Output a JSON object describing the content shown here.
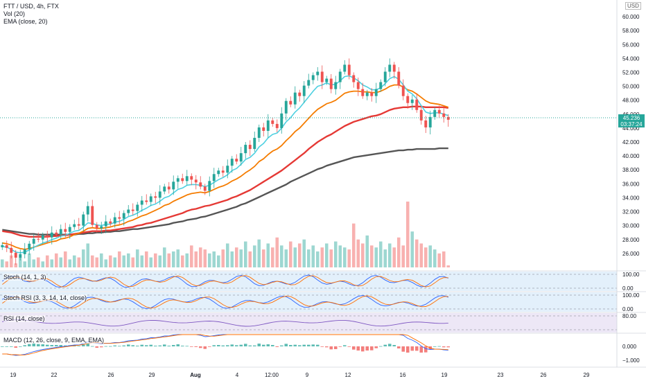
{
  "header": {
    "symbol_line": "FTT / USD, 4h, FTX",
    "volume_label": "Vol (20)",
    "ema_label": "EMA (close, 20)",
    "unit": "USD"
  },
  "price_tag": {
    "price": "45.236",
    "countdown": "03:37:24",
    "color": "#26a69a"
  },
  "panes": {
    "stoch": {
      "label": "Stoch (14, 1, 3)",
      "ticks": [
        "100.00",
        "0.00"
      ]
    },
    "stoch_rsi": {
      "label": "Stoch RSI (3, 3, 14, 14, close)",
      "ticks": [
        "100.00",
        "0.00"
      ]
    },
    "rsi": {
      "label": "RSI (14, close)",
      "ticks": [
        "80.00"
      ]
    },
    "macd": {
      "label": "MACD (12, 26, close, 9, EMA, EMA)",
      "ticks": [
        "0.000",
        "−1.000"
      ]
    }
  },
  "colors": {
    "up": "#26a69a",
    "down": "#ef5350",
    "ema_fast": "#4dd0e1",
    "ema_mid": "#f57c00",
    "ema_slow": "#e53935",
    "ema_long": "#555555",
    "stoch_k": "#2962ff",
    "stoch_d": "#ff6d00",
    "rsi": "#7e57c2"
  },
  "chart_data": {
    "type": "candlestick",
    "y_ticks": [
      "60.000",
      "58.000",
      "56.000",
      "54.000",
      "52.000",
      "50.000",
      "48.000",
      "46.000",
      "44.000",
      "42.000",
      "40.000",
      "38.000",
      "36.000",
      "34.000",
      "32.000",
      "30.000",
      "28.000",
      "26.000"
    ],
    "x_ticks": [
      "19",
      "22",
      "26",
      "29",
      "Aug",
      "4",
      "12:00",
      "9",
      "12",
      "16",
      "19",
      "23",
      "26",
      "29"
    ],
    "ylim": [
      24,
      61
    ],
    "close": [
      27.2,
      26.8,
      26.1,
      25.4,
      25.9,
      26.6,
      27.4,
      28.1,
      28.0,
      28.6,
      28.3,
      29.0,
      28.7,
      29.5,
      29.1,
      29.8,
      30.2,
      30.0,
      31.6,
      32.8,
      30.1,
      29.6,
      29.9,
      30.6,
      30.3,
      31.2,
      31.0,
      31.8,
      32.3,
      32.1,
      33.0,
      33.6,
      33.4,
      34.2,
      34.0,
      34.9,
      35.6,
      35.2,
      36.3,
      36.8,
      36.4,
      37.1,
      36.6,
      36.2,
      35.6,
      35.0,
      36.4,
      37.4,
      37.9,
      37.6,
      38.6,
      39.6,
      39.2,
      40.4,
      41.6,
      41.0,
      42.6,
      44.1,
      43.6,
      45.1,
      44.6,
      44.0,
      46.1,
      47.9,
      47.4,
      49.1,
      48.6,
      50.1,
      50.9,
      51.6,
      52.1,
      50.6,
      51.1,
      49.6,
      50.6,
      52.1,
      53.1,
      51.6,
      50.6,
      49.6,
      48.6,
      49.1,
      48.6,
      49.6,
      50.6,
      52.1,
      53.1,
      52.1,
      50.1,
      48.6,
      47.6,
      48.1,
      46.6,
      45.1,
      44.1,
      45.6,
      46.6,
      46.1,
      45.6,
      45.2
    ],
    "ema_fast": [
      27.0,
      26.9,
      26.6,
      26.2,
      26.1,
      26.2,
      26.5,
      26.9,
      27.2,
      27.5,
      27.7,
      28.0,
      28.2,
      28.5,
      28.6,
      28.9,
      29.2,
      29.3,
      29.8,
      30.4,
      30.3,
      30.1,
      30.0,
      30.2,
      30.2,
      30.5,
      30.6,
      30.9,
      31.3,
      31.5,
      31.8,
      32.2,
      32.5,
      32.9,
      33.1,
      33.5,
      34.0,
      34.2,
      34.7,
      35.2,
      35.4,
      35.8,
      35.9,
      35.9,
      35.8,
      35.6,
      35.8,
      36.2,
      36.6,
      36.9,
      37.3,
      37.9,
      38.2,
      38.8,
      39.5,
      39.8,
      40.4,
      41.3,
      41.8,
      42.6,
      43.1,
      43.3,
      44.0,
      44.9,
      45.5,
      46.3,
      46.9,
      47.7,
      48.5,
      49.3,
      50.0,
      50.2,
      50.5,
      50.2,
      50.3,
      50.8,
      51.4,
      51.5,
      51.2,
      50.8,
      50.2,
      49.9,
      49.5,
      49.5,
      49.8,
      50.4,
      51.1,
      51.4,
      51.0,
      50.2,
      49.3,
      48.9,
      48.2,
      47.2,
      46.3,
      46.1,
      46.2,
      46.2,
      46.0,
      45.8
    ],
    "ema_mid": [
      27.5,
      27.4,
      27.2,
      26.9,
      26.7,
      26.6,
      26.7,
      26.9,
      27.1,
      27.3,
      27.5,
      27.7,
      27.8,
      28.1,
      28.2,
      28.4,
      28.7,
      28.9,
      29.2,
      29.6,
      29.7,
      29.6,
      29.6,
      29.7,
      29.8,
      30.0,
      30.1,
      30.3,
      30.6,
      30.8,
      31.1,
      31.4,
      31.6,
      31.9,
      32.2,
      32.5,
      32.9,
      33.1,
      33.5,
      33.8,
      34.1,
      34.4,
      34.6,
      34.7,
      34.8,
      34.7,
      34.9,
      35.2,
      35.5,
      35.7,
      36.0,
      36.4,
      36.7,
      37.1,
      37.6,
      38.0,
      38.5,
      39.2,
      39.6,
      40.2,
      40.7,
      41.0,
      41.5,
      42.2,
      42.8,
      43.5,
      44.0,
      44.7,
      45.4,
      46.1,
      46.7,
      47.1,
      47.5,
      47.7,
      48.0,
      48.5,
      49.0,
      49.2,
      49.3,
      49.3,
      49.2,
      49.2,
      49.1,
      49.1,
      49.3,
      49.6,
      50.0,
      50.2,
      50.2,
      49.9,
      49.5,
      49.3,
      48.9,
      48.4,
      47.9,
      47.6,
      47.5,
      47.4,
      47.2,
      47.0
    ],
    "ema_slow": [
      29.2,
      29.1,
      29.0,
      28.8,
      28.6,
      28.5,
      28.4,
      28.4,
      28.4,
      28.4,
      28.4,
      28.5,
      28.5,
      28.6,
      28.6,
      28.7,
      28.8,
      28.9,
      29.0,
      29.1,
      29.2,
      29.2,
      29.2,
      29.3,
      29.3,
      29.4,
      29.5,
      29.6,
      29.7,
      29.8,
      30.0,
      30.1,
      30.3,
      30.4,
      30.6,
      30.8,
      31.0,
      31.2,
      31.4,
      31.6,
      31.8,
      32.1,
      32.3,
      32.4,
      32.6,
      32.8,
      32.9,
      33.1,
      33.3,
      33.5,
      33.7,
      34.0,
      34.2,
      34.5,
      34.8,
      35.1,
      35.5,
      35.9,
      36.3,
      36.7,
      37.1,
      37.5,
      37.9,
      38.4,
      38.9,
      39.4,
      39.9,
      40.4,
      41.0,
      41.5,
      42.0,
      42.4,
      42.8,
      43.1,
      43.5,
      43.9,
      44.3,
      44.6,
      44.9,
      45.1,
      45.3,
      45.5,
      45.7,
      45.8,
      46.0,
      46.3,
      46.6,
      46.8,
      46.9,
      47.0,
      47.0,
      47.1,
      47.1,
      47.1,
      47.0,
      47.0,
      47.0,
      47.0,
      47.0,
      46.9
    ],
    "ema_long": [
      29.4,
      29.3,
      29.2,
      29.1,
      29.0,
      28.9,
      28.8,
      28.8,
      28.7,
      28.7,
      28.7,
      28.7,
      28.7,
      28.7,
      28.7,
      28.7,
      28.7,
      28.8,
      28.8,
      28.9,
      28.9,
      29.0,
      29.0,
      29.1,
      29.1,
      29.2,
      29.2,
      29.3,
      29.4,
      29.5,
      29.5,
      29.6,
      29.7,
      29.8,
      29.9,
      30.0,
      30.1,
      30.2,
      30.4,
      30.5,
      30.6,
      30.8,
      30.9,
      31.0,
      31.2,
      31.3,
      31.5,
      31.7,
      31.9,
      32.1,
      32.3,
      32.5,
      32.7,
      33.0,
      33.2,
      33.5,
      33.8,
      34.1,
      34.4,
      34.7,
      35.0,
      35.3,
      35.6,
      35.9,
      36.3,
      36.6,
      36.9,
      37.2,
      37.5,
      37.8,
      38.1,
      38.3,
      38.6,
      38.8,
      39.0,
      39.2,
      39.4,
      39.6,
      39.8,
      39.9,
      40.0,
      40.1,
      40.2,
      40.3,
      40.4,
      40.5,
      40.6,
      40.7,
      40.8,
      40.8,
      40.9,
      40.9,
      41.0,
      41.0,
      41.0,
      41.0,
      41.0,
      41.1,
      41.1,
      41.1
    ],
    "volume": [
      4,
      3,
      6,
      2,
      5,
      3,
      7,
      4,
      5,
      3,
      6,
      4,
      7,
      5,
      8,
      4,
      6,
      5,
      9,
      12,
      6,
      5,
      7,
      4,
      6,
      5,
      8,
      6,
      7,
      5,
      9,
      6,
      8,
      5,
      7,
      6,
      10,
      7,
      8,
      9,
      6,
      7,
      11,
      8,
      10,
      9,
      7,
      8,
      6,
      9,
      12,
      8,
      10,
      9,
      13,
      8,
      11,
      14,
      9,
      12,
      10,
      15,
      11,
      9,
      13,
      10,
      12,
      14,
      9,
      11,
      8,
      10,
      12,
      9,
      13,
      11,
      10,
      9,
      22,
      14,
      12,
      16,
      11,
      10,
      13,
      9,
      12,
      10,
      15,
      11,
      33,
      18,
      14,
      12,
      10,
      11,
      9,
      7,
      8,
      1
    ]
  }
}
